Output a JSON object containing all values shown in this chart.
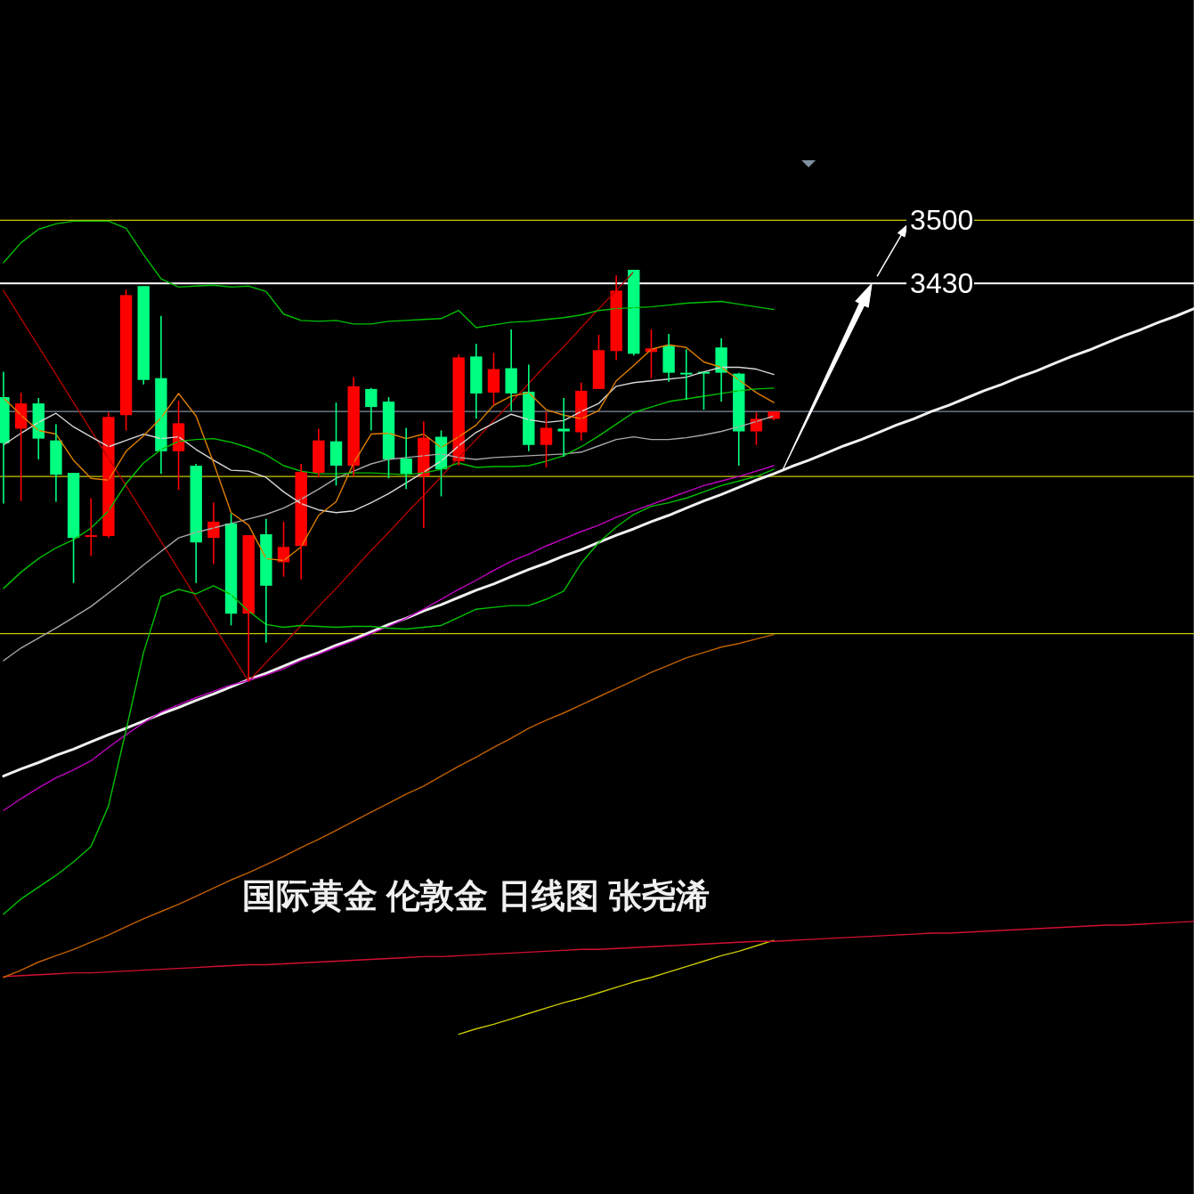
{
  "chart_data": {
    "type": "candlestick",
    "categories": [
      null,
      null,
      null,
      null,
      null,
      null,
      null,
      null,
      null,
      null,
      null,
      null,
      null,
      null,
      null,
      null,
      null,
      null,
      null,
      null,
      null,
      null,
      null,
      null,
      null,
      null,
      null,
      null,
      null,
      null,
      null,
      null,
      null,
      null,
      null,
      null,
      null,
      null,
      null,
      null,
      null,
      null,
      null,
      null,
      null,
      null,
      null,
      null,
      null,
      null,
      null,
      null,
      null,
      null,
      null,
      null,
      null,
      null,
      null,
      null,
      null,
      null,
      null,
      null,
      null,
      null,
      null,
      null,
      null
    ],
    "ohlc": [
      [
        3304,
        3332,
        3186,
        3253
      ],
      [
        3269,
        3309,
        3189,
        3297
      ],
      [
        3297,
        3303,
        3235,
        3258
      ],
      [
        3256,
        3274,
        3188,
        3218
      ],
      [
        3220,
        3220,
        3098,
        3148
      ],
      [
        3150,
        3192,
        3128,
        3151
      ],
      [
        3150,
        3287,
        3148,
        3282
      ],
      [
        3284,
        3423,
        3267,
        3417
      ],
      [
        3427,
        3427,
        3318,
        3323
      ],
      [
        3325,
        3394,
        3219,
        3244
      ],
      [
        3244,
        3300,
        3201,
        3275
      ],
      [
        3228,
        3230,
        3098,
        3143
      ],
      [
        3148,
        3187,
        3119,
        3166
      ],
      [
        3164,
        3175,
        3051,
        3064
      ],
      [
        3064,
        3151,
        2989,
        3151
      ],
      [
        3152,
        3169,
        3032,
        3095
      ],
      [
        3121,
        3166,
        3105,
        3138
      ],
      [
        3139,
        3230,
        3102,
        3221
      ],
      [
        3220,
        3269,
        3215,
        3256
      ],
      [
        3255,
        3298,
        3206,
        3228
      ],
      [
        3228,
        3326,
        3216,
        3316
      ],
      [
        3313,
        3314,
        3267,
        3293
      ],
      [
        3299,
        3304,
        3214,
        3235
      ],
      [
        3236,
        3270,
        3202,
        3219
      ],
      [
        3216,
        3277,
        3159,
        3259
      ],
      [
        3260,
        3267,
        3194,
        3224
      ],
      [
        3233,
        3351,
        3228,
        3348
      ],
      [
        3349,
        3363,
        3280,
        3308
      ],
      [
        3309,
        3353,
        3295,
        3335
      ],
      [
        3336,
        3379,
        3289,
        3308
      ],
      [
        3310,
        3340,
        3244,
        3251
      ],
      [
        3251,
        3288,
        3226,
        3270
      ],
      [
        3269,
        3303,
        3238,
        3266
      ],
      [
        3265,
        3320,
        3256,
        3311
      ],
      [
        3313,
        3373,
        3313,
        3356
      ],
      [
        3355,
        3439,
        3345,
        3422
      ],
      [
        3445,
        3445,
        3350,
        3352
      ],
      [
        3354,
        3379,
        3325,
        3358
      ],
      [
        3361,
        3374,
        3321,
        3331
      ],
      [
        3331,
        3357,
        3301,
        3330
      ],
      [
        3332,
        3332,
        3290,
        3330
      ],
      [
        3359,
        3369,
        3299,
        3331
      ],
      [
        3330,
        3331,
        3228,
        3266
      ],
      [
        3266,
        3287,
        3251,
        3280
      ],
      [
        3280,
        3288,
        3278,
        3288
      ],
      null,
      null,
      null,
      null,
      null,
      null,
      null,
      null,
      null,
      null,
      null,
      null,
      null,
      null,
      null,
      null,
      null,
      null,
      null,
      null,
      null,
      null,
      null,
      null
    ],
    "colors": [
      "#00ff80",
      "#ff0000",
      "#00ff80",
      "#00ff80",
      "#00ff80",
      "#ff0000",
      "#ff0000",
      "#ff0000",
      "#00ff80",
      "#00ff80",
      "#ff0000",
      "#00ff80",
      "#ff0000",
      "#00ff80",
      "#ff0000",
      "#00ff80",
      "#ff0000",
      "#ff0000",
      "#ff0000",
      "#00ff80",
      "#ff0000",
      "#00ff80",
      "#00ff80",
      "#00ff80",
      "#ff0000",
      "#00ff80",
      "#ff0000",
      "#00ff80",
      "#ff0000",
      "#00ff80",
      "#00ff80",
      "#ff0000",
      "#00ff80",
      "#ff0000",
      "#ff0000",
      "#ff0000",
      "#00ff80",
      "#ff0000",
      "#00ff80",
      "#00ff80",
      "#00ff80",
      "#00ff80",
      "#00ff80",
      "#ff0000",
      "#ff0000",
      null,
      null,
      null,
      null,
      null,
      null,
      null,
      null,
      null,
      null,
      null,
      null,
      null,
      null,
      null,
      null,
      null,
      null,
      null,
      null,
      null,
      null,
      null,
      null
    ],
    "ylim": [
      2421,
      3744
    ],
    "yticks": [
      3430,
      3500
    ],
    "tick_labels": "y",
    "series": [
      {
        "type": "line",
        "color": "#00c000",
        "values": [
          3453,
          3475,
          3490,
          3496,
          3499,
          3499,
          3499,
          3491,
          3462,
          3435,
          3426,
          3427,
          3428,
          3426,
          3427,
          3421,
          3396,
          3389,
          3388,
          3389,
          3385,
          3385,
          3388,
          3389,
          3390,
          3391,
          3400,
          3381,
          3384,
          3387,
          3388,
          3390,
          3392,
          3395,
          3400,
          3402,
          3403,
          3404,
          3406,
          3408,
          3409,
          3410,
          3407,
          3404,
          3401,
          null,
          null,
          null,
          null,
          null,
          null,
          null,
          null,
          null,
          null,
          null,
          null,
          null,
          null,
          null,
          null,
          null,
          null,
          null,
          null,
          null,
          null,
          null,
          null
        ]
      },
      {
        "type": "line",
        "color": "#00c000",
        "values": [
          3092,
          3110,
          3125,
          3137,
          3146,
          3159,
          3178,
          3208,
          3231,
          3246,
          3255,
          3257,
          3258,
          3254,
          3248,
          3240,
          3228,
          3222,
          3219,
          3219,
          3220,
          3220,
          3219,
          3218,
          3220,
          3224,
          3231,
          3226,
          3227,
          3227,
          3228,
          3233,
          3239,
          3249,
          3261,
          3274,
          3287,
          3293,
          3299,
          3302,
          3305,
          3308,
          3311,
          3313,
          3314,
          null,
          null,
          null,
          null,
          null,
          null,
          null,
          null,
          null,
          null,
          null,
          null,
          null,
          null,
          null,
          null,
          null,
          null,
          null,
          null,
          null,
          null,
          null,
          null
        ]
      },
      {
        "type": "line",
        "color": "#00c000",
        "values": [
          2731,
          2748,
          2761,
          2774,
          2789,
          2806,
          2851,
          2935,
          3021,
          3083,
          3091,
          3086,
          3095,
          3085,
          3067,
          3052,
          3049,
          3051,
          3050,
          3049,
          3050,
          3050,
          3048,
          3047,
          3049,
          3051,
          3060,
          3069,
          3071,
          3073,
          3073,
          3080,
          3089,
          3120,
          3143,
          3160,
          3174,
          3183,
          3187,
          3192,
          3199,
          3206,
          3211,
          3216,
          3224,
          null,
          null,
          null,
          null,
          null,
          null,
          null,
          null,
          null,
          null,
          null,
          null,
          null,
          null,
          null,
          null,
          null,
          null,
          null,
          null,
          null,
          null,
          null,
          null
        ]
      },
      {
        "type": "line",
        "color": "#e08000",
        "values": [
          3303,
          3284,
          3267,
          3263,
          3234,
          3214,
          3212,
          3244,
          3261,
          3281,
          3308,
          3283,
          3231,
          3176,
          3162,
          3125,
          3123,
          3138,
          3173,
          3188,
          3231,
          3263,
          3264,
          3258,
          3263,
          3248,
          3260,
          3273,
          3295,
          3305,
          3309,
          3290,
          3284,
          3280,
          3289,
          3322,
          3339,
          3357,
          3362,
          3359,
          3343,
          3337,
          3323,
          3309,
          3298,
          null,
          null,
          null,
          null,
          null,
          null,
          null,
          null,
          null,
          null,
          null,
          null,
          null,
          null,
          null,
          null,
          null,
          null,
          null,
          null,
          null,
          null,
          null,
          null
        ]
      },
      {
        "type": "line",
        "color": "#d8d8d8",
        "values": [
          3251,
          3264,
          3276,
          3286,
          3271,
          3260,
          3249,
          3256,
          3263,
          3258,
          3260,
          3246,
          3234,
          3223,
          3222,
          3215,
          3199,
          3186,
          3179,
          3176,
          3178,
          3187,
          3197,
          3209,
          3221,
          3233,
          3250,
          3265,
          3275,
          3285,
          3279,
          3276,
          3278,
          3288,
          3297,
          3316,
          3320,
          3322,
          3324,
          3326,
          3332,
          3337,
          3337,
          3335,
          3329,
          null,
          null,
          null,
          null,
          null,
          null,
          null,
          null,
          null,
          null,
          null,
          null,
          null,
          null,
          null,
          null,
          null,
          null,
          null,
          null,
          null,
          null,
          null,
          null
        ]
      },
      {
        "type": "line",
        "color": "#a8a8a8",
        "values": [
          3012,
          3026,
          3037,
          3048,
          3060,
          3072,
          3087,
          3102,
          3118,
          3133,
          3148,
          3154,
          3159,
          3164,
          3169,
          3174,
          3181,
          3191,
          3202,
          3214,
          3222,
          3230,
          3235,
          3237,
          3239,
          3241,
          3237,
          3235,
          3237,
          3238,
          3239,
          3240,
          3241,
          3243,
          3250,
          3257,
          3260,
          3257,
          3257,
          3259,
          3262,
          3266,
          3271,
          3277,
          3283,
          null,
          null,
          null,
          null,
          null,
          null,
          null,
          null,
          null,
          null,
          null,
          null,
          null,
          null,
          null,
          null,
          null,
          null,
          null,
          null,
          null,
          null,
          null,
          null
        ]
      },
      {
        "type": "line",
        "color": "#c000c0",
        "values": [
          2846,
          2859,
          2871,
          2882,
          2891,
          2901,
          2916,
          2930,
          2943,
          2955,
          2963,
          2971,
          2978,
          2985,
          2990,
          2996,
          3003,
          3012,
          3019,
          3027,
          3034,
          3042,
          3050,
          3059,
          3069,
          3080,
          3091,
          3101,
          3112,
          3122,
          3130,
          3139,
          3147,
          3155,
          3162,
          3171,
          3178,
          3185,
          3192,
          3199,
          3206,
          3211,
          3216,
          3222,
          3228,
          null,
          null,
          null,
          null,
          null,
          null,
          null,
          null,
          null,
          null,
          null,
          null,
          null,
          null,
          null,
          null,
          null,
          null,
          null,
          null,
          null,
          null,
          null,
          null
        ]
      },
      {
        "type": "line",
        "color": "#c06000",
        "values": [
          2661,
          2669,
          2678,
          2685,
          2692,
          2700,
          2708,
          2717,
          2726,
          2734,
          2742,
          2751,
          2760,
          2769,
          2777,
          2786,
          2795,
          2805,
          2814,
          2824,
          2834,
          2844,
          2854,
          2864,
          2873,
          2884,
          2895,
          2905,
          2916,
          2926,
          2937,
          2946,
          2954,
          2963,
          2972,
          2981,
          2990,
          2999,
          3007,
          3015,
          3021,
          3027,
          3031,
          3036,
          3041,
          null,
          null,
          null,
          null,
          null,
          null,
          null,
          null,
          null,
          null,
          null,
          null,
          null,
          null,
          null,
          null,
          null,
          null,
          null,
          null,
          null,
          null,
          null,
          null
        ]
      },
      {
        "type": "line",
        "color": "#d01030",
        "values": [
          2662,
          2663,
          2664,
          2665,
          2666,
          2666,
          2667,
          2668,
          2669,
          2670,
          2671,
          2672,
          2673,
          2674,
          2675,
          2675,
          2676,
          2677,
          2678,
          2679,
          2680,
          2681,
          2682,
          2683,
          2684,
          2684,
          2685,
          2686,
          2687,
          2688,
          2689,
          2690,
          2691,
          2692,
          2692,
          2693,
          2694,
          2695,
          2696,
          2697,
          2698,
          2699,
          2700,
          2701,
          2701,
          2702,
          2703,
          2704,
          2705,
          2706,
          2707,
          2708,
          2709,
          2710,
          2710,
          2711,
          2712,
          2713,
          2714,
          2715,
          2716,
          2717,
          2718,
          2719,
          2719,
          2720,
          2721,
          2722,
          2723
        ]
      },
      {
        "type": "line",
        "color": "#c8c800",
        "values": [
          null,
          null,
          null,
          null,
          null,
          null,
          null,
          null,
          null,
          null,
          null,
          null,
          null,
          null,
          null,
          null,
          null,
          null,
          null,
          null,
          null,
          null,
          null,
          null,
          null,
          null,
          2598,
          2604,
          2609,
          2615,
          2621,
          2627,
          2633,
          2638,
          2644,
          2650,
          2656,
          2661,
          2667,
          2673,
          2679,
          2685,
          2690,
          2696,
          2702,
          null,
          null,
          null,
          null,
          null,
          null,
          null,
          null,
          null,
          null,
          null,
          null,
          null,
          null,
          null,
          null,
          null,
          null,
          null,
          null,
          null,
          null,
          null,
          null
        ]
      },
      {
        "type": "line",
        "color": "#b00000",
        "values": [
          3422,
          3391,
          3360,
          3329,
          3298,
          3267,
          3236,
          3206,
          3175,
          3144,
          3113,
          3082,
          3051,
          3020,
          2989,
          3010,
          3030,
          3051,
          3072,
          3092,
          3113,
          3134,
          3154,
          3175,
          3195,
          3216,
          3237,
          3257,
          3278,
          3298,
          3319,
          3340,
          3360,
          3381,
          3402,
          3422,
          3443,
          null,
          null,
          null,
          null,
          null,
          null,
          null,
          null,
          null,
          null,
          null,
          null,
          null,
          null,
          null,
          null,
          null,
          null,
          null,
          null,
          null,
          null,
          null,
          null,
          null,
          null,
          null,
          null,
          null,
          null,
          null,
          null
        ]
      },
      {
        "type": "line",
        "color": "#f0f0f0",
        "values": [
          2884,
          2892,
          2899,
          2907,
          2914,
          2922,
          2930,
          2937,
          2945,
          2953,
          2960,
          2968,
          2975,
          2983,
          2991,
          2998,
          3006,
          3014,
          3021,
          3029,
          3036,
          3044,
          3052,
          3059,
          3067,
          3074,
          3082,
          3090,
          3097,
          3105,
          3113,
          3120,
          3128,
          3135,
          3143,
          3151,
          3158,
          3166,
          3173,
          3181,
          3189,
          3196,
          3204,
          3212,
          3219,
          3227,
          3234,
          3242,
          3250,
          3257,
          3265,
          3273,
          3280,
          3288,
          3295,
          3303,
          3311,
          3318,
          3326,
          3333,
          3341,
          3349,
          3356,
          3364,
          3372,
          3379,
          3387,
          3394,
          3402
        ]
      }
    ],
    "ref_lines": [
      {
        "axis": "y",
        "value": 3430,
        "color": "#ffffff"
      },
      {
        "axis": "y",
        "value": 3500,
        "color": "#c8c800"
      },
      {
        "axis": "y",
        "value": 3288,
        "color": "#8090a0"
      },
      {
        "axis": "y",
        "value": 3216,
        "color": "#c8c800"
      },
      {
        "axis": "y",
        "value": 3042,
        "color": "#c8c800"
      }
    ],
    "annotations": [
      "国际黄金 伦敦金 日线图 张尧浠"
    ]
  }
}
